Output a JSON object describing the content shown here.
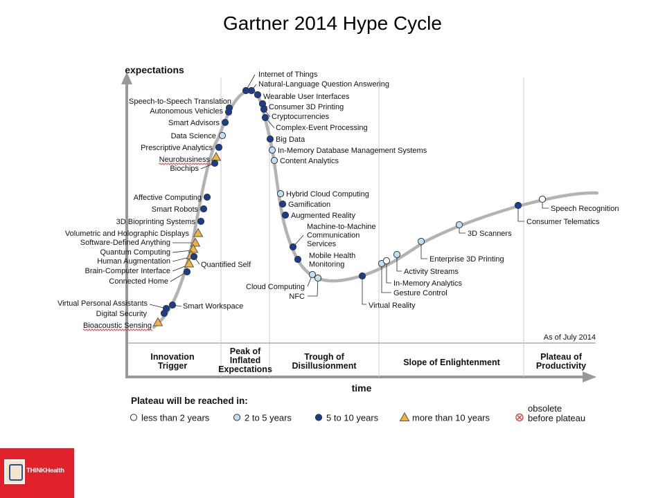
{
  "title": "Gartner 2014 Hype Cycle",
  "axes": {
    "y": "expectations",
    "x": "time"
  },
  "as_of": "As of July 2014",
  "phases": [
    {
      "lines": [
        "Innovation",
        "Trigger"
      ]
    },
    {
      "lines": [
        "Peak of",
        "Inflated",
        "Expectations"
      ]
    },
    {
      "lines": [
        "Trough of",
        "Disillusionment"
      ]
    },
    {
      "lines": [
        "Slope of Enlightenment"
      ]
    },
    {
      "lines": [
        "Plateau of",
        "Productivity"
      ]
    }
  ],
  "legend": {
    "title": "Plateau will be reached in:",
    "items": [
      {
        "key": "lt2",
        "lines": [
          "less than 2 years"
        ]
      },
      {
        "key": "2to5",
        "lines": [
          "2 to 5 years"
        ]
      },
      {
        "key": "5to10",
        "lines": [
          "5 to 10 years"
        ]
      },
      {
        "key": "gt10",
        "lines": [
          "more than 10 years"
        ]
      },
      {
        "key": "obsolete",
        "lines": [
          "obsolete",
          "before plateau"
        ]
      }
    ]
  },
  "colors": {
    "lt2": "#ffffff",
    "2to5": "#bfe0f2",
    "5to10": "#1b3d8f",
    "gt10": "#f2b33d",
    "obsolete": "#e03030",
    "curve": "#b3b3b3",
    "divider": "#cccccc"
  },
  "technologies": [
    {
      "name": "Internet of Things",
      "category": "5to10"
    },
    {
      "name": "Natural-Language Question Answering",
      "category": "5to10"
    },
    {
      "name": "Wearable User Interfaces",
      "category": "5to10"
    },
    {
      "name": "Consumer 3D Printing",
      "category": "5to10"
    },
    {
      "name": "Cryptocurrencies",
      "category": "5to10"
    },
    {
      "name": "Complex-Event Processing",
      "category": "5to10"
    },
    {
      "name": "Big Data",
      "category": "5to10"
    },
    {
      "name": "In-Memory Database Management Systems",
      "category": "2to5"
    },
    {
      "name": "Content Analytics",
      "category": "2to5"
    },
    {
      "name": "Hybrid Cloud Computing",
      "category": "2to5"
    },
    {
      "name": "Gamification",
      "category": "5to10"
    },
    {
      "name": "Augmented Reality",
      "category": "5to10"
    },
    {
      "name": "Machine-to-Machine Communication Services",
      "category": "5to10"
    },
    {
      "name": "Mobile Health Monitoring",
      "category": "5to10"
    },
    {
      "name": "Cloud Computing",
      "category": "2to5"
    },
    {
      "name": "NFC",
      "category": "2to5"
    },
    {
      "name": "Virtual Reality",
      "category": "5to10"
    },
    {
      "name": "Gesture Control",
      "category": "2to5"
    },
    {
      "name": "In-Memory Analytics",
      "category": "lt2"
    },
    {
      "name": "Activity Streams",
      "category": "2to5"
    },
    {
      "name": "Enterprise 3D Printing",
      "category": "2to5"
    },
    {
      "name": "3D Scanners",
      "category": "2to5"
    },
    {
      "name": "Consumer Telematics",
      "category": "5to10"
    },
    {
      "name": "Speech Recognition",
      "category": "lt2"
    },
    {
      "name": "Speech-to-Speech Translation",
      "category": "5to10"
    },
    {
      "name": "Autonomous Vehicles",
      "category": "5to10"
    },
    {
      "name": "Smart Advisors",
      "category": "5to10"
    },
    {
      "name": "Data Science",
      "category": "2to5"
    },
    {
      "name": "Prescriptive Analytics",
      "category": "5to10"
    },
    {
      "name": "Neurobusiness",
      "category": "gt10"
    },
    {
      "name": "Biochips",
      "category": "5to10"
    },
    {
      "name": "Affective Computing",
      "category": "5to10"
    },
    {
      "name": "Smart Robots",
      "category": "5to10"
    },
    {
      "name": "3D Bioprinting Systems",
      "category": "5to10"
    },
    {
      "name": "Volumetric and Holographic Displays",
      "category": "gt10"
    },
    {
      "name": "Software-Defined Anything",
      "category": "gt10"
    },
    {
      "name": "Quantum Computing",
      "category": "gt10"
    },
    {
      "name": "Human Augmentation",
      "category": "gt10"
    },
    {
      "name": "Brain-Computer Interface",
      "category": "gt10"
    },
    {
      "name": "Quantified Self",
      "category": "5to10"
    },
    {
      "name": "Connected Home",
      "category": "5to10"
    },
    {
      "name": "Smart Workspace",
      "category": "5to10"
    },
    {
      "name": "Virtual Personal Assistants",
      "category": "5to10"
    },
    {
      "name": "Digital Security",
      "category": "5to10"
    },
    {
      "name": "Bioacoustic Sensing",
      "category": "gt10"
    }
  ],
  "logo": {
    "text": "THINKHealth"
  }
}
